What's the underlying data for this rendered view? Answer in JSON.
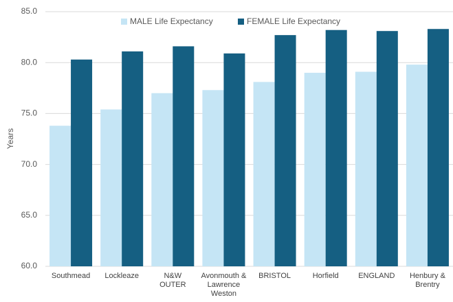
{
  "chart_data": {
    "type": "bar",
    "y_label": "Years",
    "categories": [
      "Southmead",
      "Lockleaze",
      "N&W OUTER",
      "Avonmouth & Lawrence Weston",
      "BRISTOL",
      "Horfield",
      "ENGLAND",
      "Henbury & Brentry"
    ],
    "series": [
      {
        "name": "MALE Life Expectancy",
        "color": "#c5e5f5",
        "values": [
          73.8,
          75.4,
          77.0,
          77.3,
          78.1,
          79.0,
          79.1,
          79.8
        ]
      },
      {
        "name": "FEMALE Life Expectancy",
        "color": "#155f82",
        "values": [
          80.3,
          81.1,
          81.6,
          80.9,
          82.7,
          83.2,
          83.1,
          83.3
        ]
      }
    ],
    "ylim": [
      60,
      85
    ],
    "yticks": [
      {
        "value": 60,
        "label": "60.0"
      },
      {
        "value": 65,
        "label": "65.0"
      },
      {
        "value": 70,
        "label": "70.0"
      },
      {
        "value": 75,
        "label": "75.0"
      },
      {
        "value": 80,
        "label": "80.0"
      },
      {
        "value": 85,
        "label": "85.0"
      }
    ],
    "grid": true,
    "legend": "top"
  }
}
